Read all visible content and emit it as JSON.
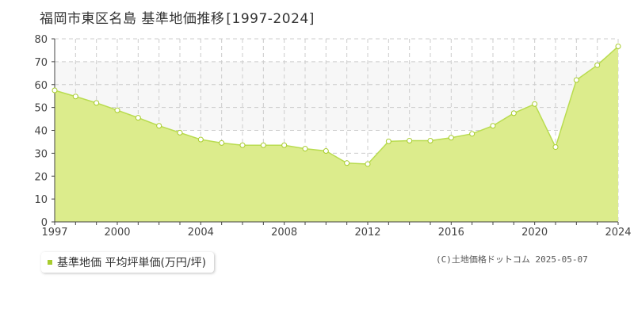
{
  "page": {
    "title": "福岡市東区名島 基準地価推移",
    "title_range": "[1997-2024]",
    "credit": "(C)土地価格ドットコム 2025-05-07"
  },
  "legend": {
    "label": "基準地価 平均坪単価(万円/坪)",
    "color": "#a8cc2e"
  },
  "colors": {
    "area_fill": "#dcec8c",
    "line": "#b9dc50",
    "marker_stroke": "#a8cc2e",
    "grid": "#cccccc",
    "band": "#f7f7f7"
  },
  "chart_data": {
    "type": "area",
    "title": "福岡市東区名島 基準地価推移[1997-2024]",
    "xlabel": "",
    "ylabel": "",
    "x": [
      1997,
      1998,
      1999,
      2000,
      2001,
      2002,
      2003,
      2004,
      2005,
      2006,
      2007,
      2008,
      2009,
      2010,
      2011,
      2012,
      2013,
      2014,
      2015,
      2016,
      2017,
      2018,
      2019,
      2020,
      2021,
      2022,
      2023,
      2024
    ],
    "series": [
      {
        "name": "基準地価 平均坪単価(万円/坪)",
        "values": [
          57.5,
          54.8,
          52.0,
          48.8,
          45.5,
          42.0,
          39.0,
          36.0,
          34.5,
          33.5,
          33.5,
          33.5,
          32.0,
          31.0,
          25.7,
          25.3,
          35.2,
          35.5,
          35.5,
          36.8,
          38.5,
          42.0,
          47.5,
          51.5,
          32.7,
          62.0,
          68.5,
          76.7
        ]
      }
    ],
    "xlim": [
      1997,
      2024
    ],
    "ylim": [
      0,
      80
    ],
    "xticks": [
      1997,
      2000,
      2004,
      2008,
      2012,
      2016,
      2020,
      2024
    ],
    "yticks": [
      0,
      10,
      20,
      30,
      40,
      50,
      60,
      70,
      80
    ],
    "grid": true
  }
}
